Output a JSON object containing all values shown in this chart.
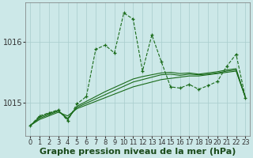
{
  "x": [
    0,
    1,
    2,
    3,
    4,
    5,
    6,
    7,
    8,
    9,
    10,
    11,
    12,
    13,
    14,
    15,
    16,
    17,
    18,
    19,
    20,
    21,
    22,
    23
  ],
  "series_main": [
    1014.62,
    1014.78,
    1014.83,
    1014.88,
    1014.7,
    1014.98,
    1015.1,
    1015.88,
    1015.95,
    1015.82,
    1016.48,
    1016.38,
    1015.52,
    1016.12,
    1015.68,
    1015.26,
    1015.24,
    1015.3,
    1015.22,
    1015.28,
    1015.35,
    1015.6,
    1015.8,
    1015.08
  ],
  "series_trend1": [
    1014.62,
    1014.72,
    1014.78,
    1014.84,
    1014.78,
    1014.9,
    1014.96,
    1015.02,
    1015.08,
    1015.14,
    1015.2,
    1015.26,
    1015.3,
    1015.34,
    1015.38,
    1015.4,
    1015.42,
    1015.44,
    1015.44,
    1015.46,
    1015.48,
    1015.5,
    1015.52,
    1015.08
  ],
  "series_trend2": [
    1014.62,
    1014.74,
    1014.8,
    1014.86,
    1014.74,
    1014.92,
    1014.99,
    1015.06,
    1015.13,
    1015.2,
    1015.27,
    1015.34,
    1015.38,
    1015.42,
    1015.46,
    1015.47,
    1015.45,
    1015.47,
    1015.46,
    1015.47,
    1015.49,
    1015.52,
    1015.54,
    1015.08
  ],
  "series_trend3": [
    1014.62,
    1014.76,
    1014.82,
    1014.87,
    1014.72,
    1014.94,
    1015.02,
    1015.1,
    1015.18,
    1015.25,
    1015.32,
    1015.39,
    1015.43,
    1015.46,
    1015.49,
    1015.5,
    1015.48,
    1015.49,
    1015.47,
    1015.49,
    1015.51,
    1015.54,
    1015.56,
    1015.08
  ],
  "ylim": [
    1014.45,
    1016.65
  ],
  "yticks": [
    1015.0,
    1016.0
  ],
  "ytick_labels": [
    "1015",
    "1016"
  ],
  "xlabel": "Graphe pression niveau de la mer (hPa)",
  "bg_color": "#cce8e8",
  "line_color": "#1a6b1a",
  "grid_color": "#a8cccc",
  "tick_fontsize": 6,
  "xlabel_fontsize": 8
}
